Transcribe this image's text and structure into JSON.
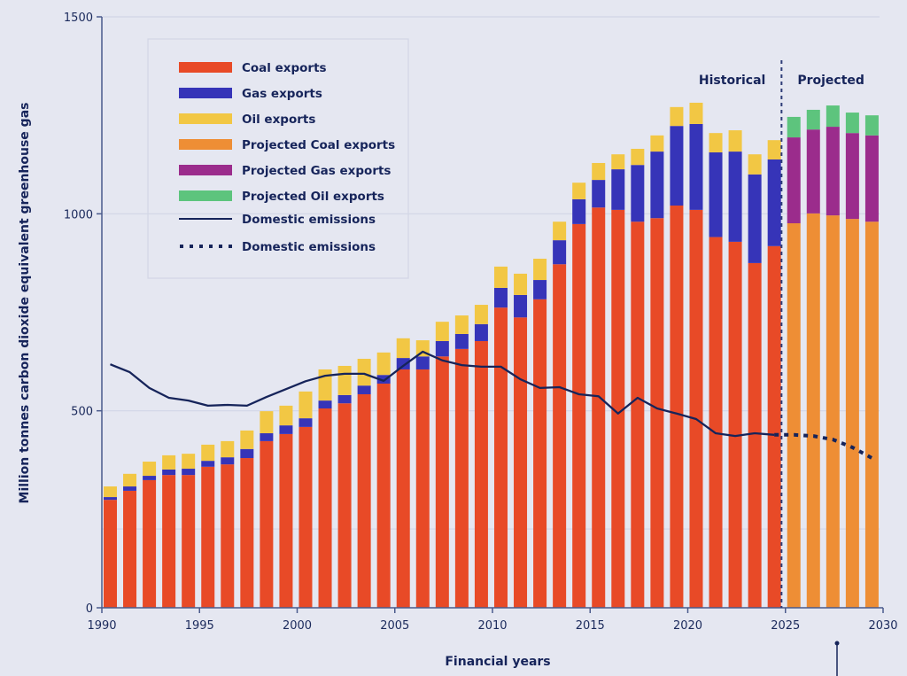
{
  "chart_data": {
    "type": "bar",
    "stacked": true,
    "title": "",
    "xlabel": "Financial years",
    "ylabel": "Million tonnes carbon dioxide equivalent greenhouse gas",
    "xlim": [
      1990,
      2030
    ],
    "ylim": [
      0,
      1500
    ],
    "x_ticks": [
      1990,
      1995,
      2000,
      2005,
      2010,
      2015,
      2020,
      2025,
      2030
    ],
    "y_ticks": [
      0,
      500,
      1000,
      1500
    ],
    "grid": "horizontal",
    "legend_position": "top-left",
    "period_labels": {
      "historical": "Historical",
      "projected": "Projected",
      "divider_year": 2024.8
    },
    "years": [
      1990,
      1991,
      1992,
      1993,
      1994,
      1995,
      1996,
      1997,
      1998,
      1999,
      2000,
      2001,
      2002,
      2003,
      2004,
      2005,
      2006,
      2007,
      2008,
      2009,
      2010,
      2011,
      2012,
      2013,
      2014,
      2015,
      2016,
      2017,
      2018,
      2019,
      2020,
      2021,
      2022,
      2023,
      2024,
      2025,
      2026,
      2027,
      2028,
      2029
    ],
    "series": [
      {
        "name": "Coal exports",
        "color": "#e84a27",
        "kind": "bar",
        "values": [
          274,
          297,
          324,
          337,
          337,
          358,
          364,
          380,
          423,
          441,
          459,
          506,
          519,
          542,
          569,
          605,
          605,
          638,
          657,
          677,
          762,
          737,
          783,
          872,
          974,
          1016,
          1010,
          980,
          989,
          1021,
          1010,
          941,
          929,
          875,
          918,
          null,
          null,
          null,
          null,
          null
        ]
      },
      {
        "name": "Gas exports",
        "color": "#3634b8",
        "kind": "bar",
        "values": [
          7,
          11,
          11,
          14,
          16,
          15,
          18,
          23,
          20,
          22,
          22,
          20,
          21,
          22,
          22,
          29,
          33,
          39,
          38,
          43,
          50,
          57,
          49,
          61,
          63,
          70,
          103,
          144,
          169,
          202,
          218,
          215,
          229,
          225,
          220,
          null,
          null,
          null,
          null,
          null
        ]
      },
      {
        "name": "Oil exports",
        "color": "#f2c744",
        "kind": "bar",
        "values": [
          27,
          32,
          36,
          36,
          38,
          41,
          41,
          47,
          56,
          50,
          68,
          79,
          74,
          68,
          57,
          50,
          41,
          49,
          47,
          49,
          54,
          54,
          54,
          47,
          42,
          43,
          38,
          41,
          41,
          48,
          54,
          49,
          54,
          51,
          49,
          null,
          null,
          null,
          null,
          null
        ]
      },
      {
        "name": "Projected Coal exports",
        "color": "#ee8e35",
        "kind": "bar",
        "values": [
          null,
          null,
          null,
          null,
          null,
          null,
          null,
          null,
          null,
          null,
          null,
          null,
          null,
          null,
          null,
          null,
          null,
          null,
          null,
          null,
          null,
          null,
          null,
          null,
          null,
          null,
          null,
          null,
          null,
          null,
          null,
          null,
          null,
          null,
          null,
          976,
          1001,
          996,
          987,
          980
        ]
      },
      {
        "name": "Projected Gas exports",
        "color": "#9b2c8c",
        "kind": "bar",
        "values": [
          null,
          null,
          null,
          null,
          null,
          null,
          null,
          null,
          null,
          null,
          null,
          null,
          null,
          null,
          null,
          null,
          null,
          null,
          null,
          null,
          null,
          null,
          null,
          null,
          null,
          null,
          null,
          null,
          null,
          null,
          null,
          null,
          null,
          null,
          null,
          218,
          213,
          225,
          218,
          219
        ]
      },
      {
        "name": "Projected Oil exports",
        "color": "#5dc47d",
        "kind": "bar",
        "values": [
          null,
          null,
          null,
          null,
          null,
          null,
          null,
          null,
          null,
          null,
          null,
          null,
          null,
          null,
          null,
          null,
          null,
          null,
          null,
          null,
          null,
          null,
          null,
          null,
          null,
          null,
          null,
          null,
          null,
          null,
          null,
          null,
          null,
          null,
          null,
          52,
          50,
          54,
          52,
          51
        ]
      },
      {
        "name": "Domestic emissions",
        "color": "#16245a",
        "kind": "line",
        "style": "solid",
        "values": [
          618,
          598,
          558,
          533,
          526,
          513,
          515,
          513,
          535,
          555,
          575,
          589,
          594,
          594,
          576,
          614,
          650,
          628,
          616,
          612,
          612,
          580,
          558,
          560,
          542,
          537,
          493,
          533,
          506,
          493,
          479,
          443,
          436,
          443,
          439,
          null,
          null,
          null,
          null,
          null
        ]
      },
      {
        "name": "Domestic emissions",
        "color": "#16245a",
        "kind": "line",
        "style": "dotted",
        "values": [
          null,
          null,
          null,
          null,
          null,
          null,
          null,
          null,
          null,
          null,
          null,
          null,
          null,
          null,
          null,
          null,
          null,
          null,
          null,
          null,
          null,
          null,
          null,
          null,
          null,
          null,
          null,
          null,
          null,
          null,
          null,
          null,
          null,
          null,
          439,
          439,
          436,
          427,
          407,
          380
        ]
      }
    ]
  }
}
